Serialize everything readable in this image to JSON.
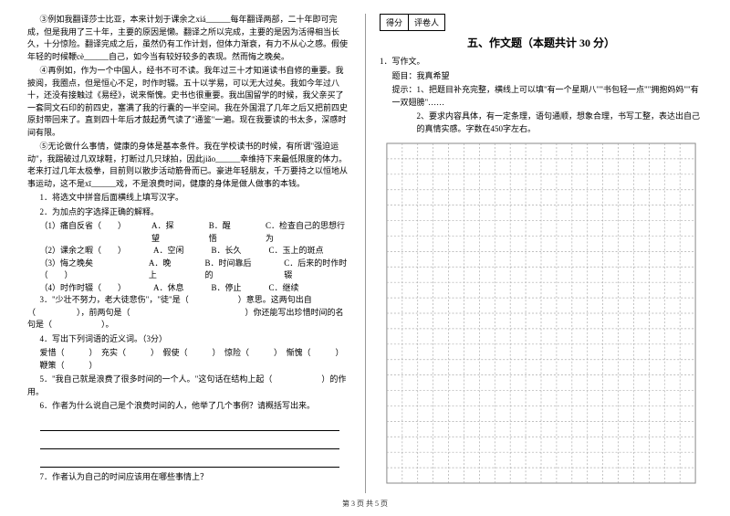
{
  "left": {
    "para3": "③例如我翻译莎士比亚，本来计划于课余之xiá______每年翻译两部，二十年即可完成，但是我用了三十年，主要的原因是懒。翻译之所以完成，主要的是因为活得相当长久，十分惊险。翻译完成之后，虽然仍有工作计划，但体力渐衰，有力不从心之感。假使年轻的时候鞭cè______自己，如今当有较好较多的表现。然而悔之晚矣。",
    "para4": "④再例如，作为一个中国人，经书不可不读。我年过三十才知道读书自修的重要。我披阅，我圈点，但是恒心不足，时作时辍。五十以学易，可以无大过矣。我如今年过八十，还没有接触过《易经》，说来惭愧。史书也很重要。我出国留学的时候，我父亲买了一套同文石印的前四史，塞满了我的行囊的一半空间。我在外国混了几年之后又把前四史原封带回来了。直到四十年后才鼓起勇气读了\"通鉴\"一遍。现在我要读的书太多，深感时间有限。",
    "para5": "⑤无论做什么事情，健康的身体是基本条件。我在学校读书的时候，有所谓\"强迫运动\"，我踢破过几双球鞋，打断过几只球拍，因此jiǎo______幸维持下来最低限度的体力。老来打过几年太极拳，目前则以散步活动筋骨而已。豪进年轻朋友，千万要持之以恒地从事运动，这不是xī______戏，不是浪费时间，健康的身体是做人做事的本钱。",
    "q1": "1．将选文中拼音后面横线上填写汉字。",
    "q2": "2．为加点的字选择正确的解释。",
    "q2_1_label": "（1）痛自反省（　　）",
    "q2_1_a": "A．探望",
    "q2_1_b": "B．醒悟",
    "q2_1_c": "C．检查自己的思想行为",
    "q2_2_label": "（2）课余之暇（　　）",
    "q2_2_a": "A．空闲",
    "q2_2_b": "B．长久",
    "q2_2_c": "C．玉上的斑点",
    "q2_3_label": "（3）悔之晚矣（　　）",
    "q2_3_a": "A．晚上",
    "q2_3_b": "B．时间靠后的",
    "q2_3_c": "C．后来的时作时辍",
    "q2_4_label": "（4）时作时辍（　　）",
    "q2_4_a": "A．休息",
    "q2_4_b": "B．停止",
    "q2_4_c": "C．继续",
    "q3": "3．\"少壮不努力，老大徒悲伤\"，\"徒\"是（　　　　　　）意思。这两句出自（　　　　　），前两句是（　　　　　　　　　　　　　　）你还能写出珍惜时间的名句是（　　　　　　）。",
    "q4": "4．写出下列词语的近义词。（3分）",
    "q4_words": "爱惜（　　　）　充实（　　　）　假使（　　　）　惊险（　　　）　惭愧（　　　）　鞭策（　　　）",
    "q5": "5．\"我自己就是浪费了很多时间的一个人。\"这句话在结构上起（　　　　　　）的作用。",
    "q6": "6．作者为什么说自己是个浪费时间的人，他举了几个事例？请概括写出来。",
    "q7": "7．作者认为自己的时间应该用在哪些事情上？"
  },
  "right": {
    "score_label1": "得分",
    "score_label2": "评卷人",
    "section_title": "五、作文题（本题共计 30 分）",
    "q1_label": "1．写作文。",
    "topic_label": "题目：我真希望",
    "hint1": "提示：1、把题目补充完整，横线上可以填\"有一个星期八\"\"书包轻一点\"\"拥抱妈妈\"\"有一双翅膀\"……",
    "hint2": "2、要求内容具体，有一定条理，语句通顺，想象合理，书写工整，表达出自己的真情实感。字数在450字左右。"
  },
  "grid": {
    "cols": 20,
    "rows": 22,
    "cell_size": 17,
    "border_color": "#888888",
    "line_color": "#aaaaaa",
    "dash": "2,2"
  },
  "footer": "第 3 页 共 5 页"
}
